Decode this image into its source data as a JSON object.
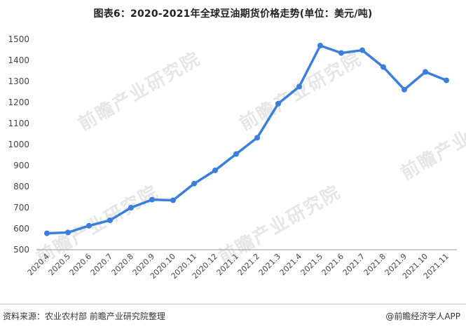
{
  "title": "图表6：2020-2021年全球豆油期货价格走势(单位：美元/吨)",
  "source": "资料来源：农业农村部 前瞻产业研究院整理",
  "brand": "@前瞻经济学人APP",
  "watermark_text": "前瞻产业研究院",
  "colors": {
    "line": "#3a7fdc",
    "axis": "#999999",
    "watermark": "#e6e6e6"
  },
  "chart_data": {
    "type": "line",
    "title": "图表6：2020-2021年全球豆油期货价格走势(单位：美元/吨)",
    "xlabel": "",
    "ylabel": "",
    "ylim": [
      500,
      1500
    ],
    "yticks": [
      500,
      600,
      700,
      800,
      900,
      1000,
      1100,
      1200,
      1300,
      1400,
      1500
    ],
    "grid": false,
    "categories": [
      "2020.4",
      "2020.5",
      "2020.6",
      "2020.7",
      "2020.8",
      "2020.9",
      "2020.10",
      "2020.11",
      "2020.12",
      "2021.1",
      "2021.2",
      "2021.3",
      "2021.4",
      "2021.5",
      "2021.6",
      "2021.7",
      "2021.8",
      "2021.9",
      "2021.10",
      "2021.11"
    ],
    "series": [
      {
        "values": [
          578,
          582,
          614,
          640,
          700,
          738,
          735,
          814,
          877,
          955,
          1032,
          1194,
          1275,
          1470,
          1435,
          1448,
          1368,
          1261,
          1345,
          1305
        ]
      }
    ]
  }
}
